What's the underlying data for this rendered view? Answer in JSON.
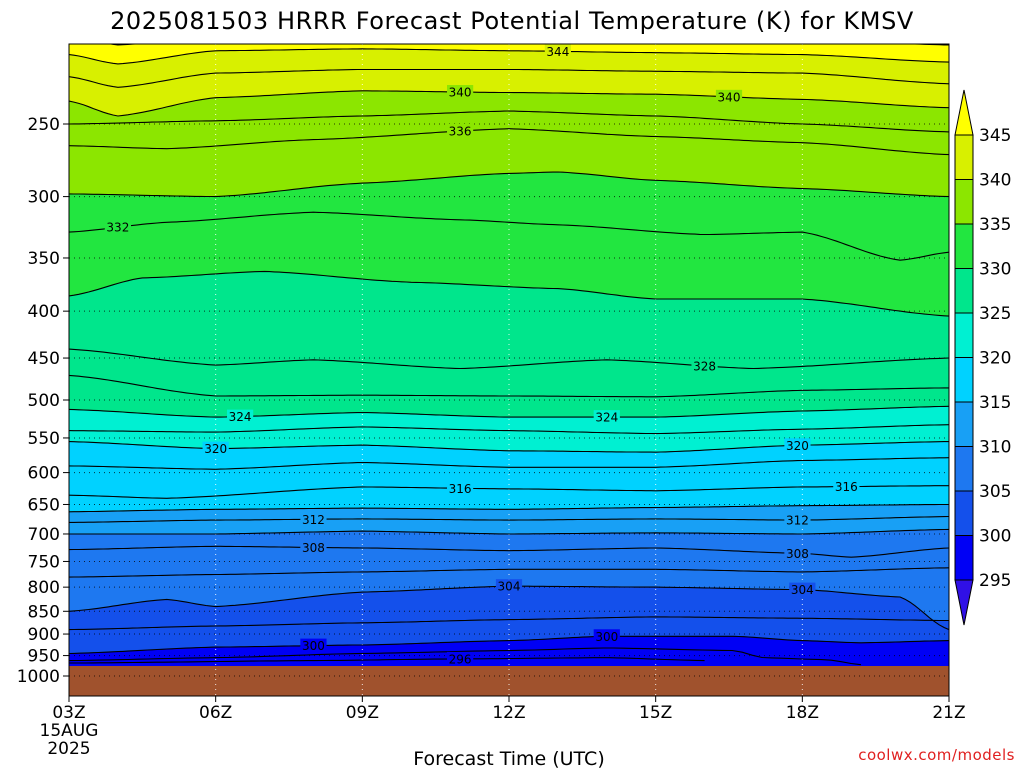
{
  "chart_data": {
    "type": "heatmap",
    "title": "2025081503 HRRR Forecast Potential Temperature (K) for KMSV",
    "xlabel": "Forecast Time (UTC)",
    "ylabel": "",
    "credit": "coolwx.com/models",
    "x_ticks": [
      "03Z",
      "06Z",
      "09Z",
      "12Z",
      "15Z",
      "18Z",
      "21Z"
    ],
    "x_start_date": [
      "15AUG",
      "2025"
    ],
    "x_range_hours": [
      3,
      21
    ],
    "y_ticks": [
      "250",
      "300",
      "350",
      "400",
      "450",
      "500",
      "550",
      "600",
      "650",
      "700",
      "750",
      "800",
      "850",
      "900",
      "950",
      "1000"
    ],
    "y_scale": "log-pressure",
    "y_range_hpa": [
      975,
      200
    ],
    "grid": "dotted",
    "ground_color": "#a0522d",
    "colorbar": {
      "levels": [
        295,
        300,
        305,
        310,
        315,
        320,
        325,
        330,
        335,
        340,
        345
      ],
      "labels": [
        "295",
        "300",
        "305",
        "310",
        "315",
        "320",
        "325",
        "330",
        "335",
        "340",
        "345"
      ],
      "colors": [
        "#3010e6",
        "#0000f5",
        "#1450eb",
        "#1e78f0",
        "#18a0f5",
        "#00d2ff",
        "#00f0d2",
        "#00e68c",
        "#22e640",
        "#8ce600",
        "#d8f000",
        "#ffff00"
      ]
    },
    "contour_interval": 2,
    "isentropes": [
      {
        "theta": 296,
        "label": "296",
        "x": [
          3,
          8,
          11,
          14,
          16
        ],
        "p": [
          968,
          962,
          958,
          955,
          962
        ]
      },
      {
        "theta": 298,
        "label": "",
        "x": [
          3,
          6,
          9,
          12,
          14,
          16.6,
          17.2,
          18.5,
          19.2
        ],
        "p": [
          962,
          955,
          945,
          938,
          932,
          938,
          955,
          960,
          972
        ]
      },
      {
        "theta": 300,
        "label": "300",
        "x": [
          3,
          6,
          9,
          12,
          14,
          16.6,
          18,
          19.2,
          21
        ],
        "p": [
          945,
          930,
          925,
          915,
          905,
          905,
          915,
          920,
          915
        ]
      },
      {
        "theta": 302,
        "label": "",
        "x": [
          3,
          6,
          9,
          12,
          15,
          18,
          21
        ],
        "p": [
          890,
          882,
          875,
          868,
          862,
          865,
          870
        ]
      },
      {
        "theta": 304,
        "label": "304",
        "x": [
          3,
          5,
          6,
          9,
          12,
          15,
          18,
          20,
          21
        ],
        "p": [
          850,
          825,
          840,
          810,
          798,
          800,
          805,
          820,
          890
        ]
      },
      {
        "theta": 306,
        "label": "",
        "x": [
          3,
          6,
          9,
          12,
          15,
          18,
          21
        ],
        "p": [
          780,
          775,
          770,
          765,
          765,
          770,
          762
        ]
      },
      {
        "theta": 308,
        "label": "308",
        "x": [
          3,
          6,
          9,
          12,
          15,
          18,
          19,
          21
        ],
        "p": [
          728,
          722,
          725,
          730,
          725,
          735,
          742,
          725
        ]
      },
      {
        "theta": 310,
        "label": "",
        "x": [
          3,
          6,
          9,
          12,
          15,
          18,
          21
        ],
        "p": [
          700,
          700,
          695,
          700,
          698,
          700,
          692
        ]
      },
      {
        "theta": 312,
        "label": "312",
        "x": [
          3,
          6,
          9,
          12,
          15,
          18,
          21
        ],
        "p": [
          680,
          676,
          674,
          676,
          674,
          676,
          670
        ]
      },
      {
        "theta": 314,
        "label": "",
        "x": [
          3,
          6,
          9,
          12,
          15,
          18,
          21
        ],
        "p": [
          662,
          658,
          656,
          658,
          655,
          652,
          650
        ]
      },
      {
        "theta": 316,
        "label": "316",
        "x": [
          3,
          5,
          9,
          12,
          15,
          18,
          21
        ],
        "p": [
          635,
          640,
          622,
          625,
          628,
          622,
          620
        ]
      },
      {
        "theta": 318,
        "label": "",
        "x": [
          3,
          6,
          9,
          12,
          15,
          18,
          21
        ],
        "p": [
          590,
          595,
          585,
          592,
          592,
          582,
          578
        ]
      },
      {
        "theta": 320,
        "label": "320",
        "x": [
          3,
          6,
          9,
          12,
          15,
          18,
          21
        ],
        "p": [
          555,
          565,
          560,
          568,
          570,
          560,
          555
        ]
      },
      {
        "theta": 322,
        "label": "",
        "x": [
          3,
          6,
          9,
          12,
          15,
          18,
          21
        ],
        "p": [
          540,
          542,
          535,
          540,
          544,
          538,
          532
        ]
      },
      {
        "theta": 324,
        "label": "324",
        "x": [
          3,
          6,
          9,
          12,
          15,
          18,
          21
        ],
        "p": [
          512,
          522,
          516,
          522,
          522,
          514,
          508
        ]
      },
      {
        "theta": 326,
        "label": "",
        "x": [
          3,
          6,
          9,
          12,
          15,
          18,
          21
        ],
        "p": [
          470,
          495,
          494,
          495,
          496,
          488,
          485
        ]
      },
      {
        "theta": 328,
        "label": "328",
        "x": [
          3,
          6,
          8,
          11,
          14,
          17,
          21
        ],
        "p": [
          440,
          458,
          452,
          462,
          452,
          462,
          450
        ]
      },
      {
        "theta": 330,
        "label": "",
        "x": [
          3,
          4.5,
          7,
          10,
          13,
          15,
          18,
          21
        ],
        "p": [
          385,
          368,
          362,
          372,
          378,
          388,
          388,
          405
        ]
      },
      {
        "theta": 332,
        "label": "332",
        "x": [
          3,
          5,
          8,
          11,
          13,
          16,
          18,
          20,
          21
        ],
        "p": [
          328,
          320,
          312,
          318,
          322,
          330,
          328,
          352,
          345
        ]
      },
      {
        "theta": 334,
        "label": "",
        "x": [
          3,
          6,
          9,
          12,
          13,
          15,
          18,
          21
        ],
        "p": [
          298,
          300,
          290,
          283,
          282,
          288,
          294,
          300
        ]
      },
      {
        "theta": 336,
        "label": "336",
        "x": [
          3,
          5,
          8,
          12,
          15,
          18,
          21
        ],
        "p": [
          264,
          266,
          260,
          253,
          258,
          262,
          270
        ]
      },
      {
        "theta": 338,
        "label": "",
        "x": [
          3,
          6,
          9,
          12,
          15,
          18,
          21
        ],
        "p": [
          250,
          248,
          245,
          242,
          245,
          250,
          255
        ]
      },
      {
        "theta": 340,
        "label": "340",
        "x": [
          3,
          4,
          6,
          9,
          12,
          15,
          18,
          21
        ],
        "p": [
          236,
          245,
          234,
          230,
          231,
          232,
          235,
          240
        ]
      },
      {
        "theta": 342,
        "label": "",
        "x": [
          3,
          4,
          6,
          9,
          12,
          15,
          18,
          21
        ],
        "p": [
          222,
          228,
          220,
          218,
          218,
          219,
          220,
          226
        ]
      },
      {
        "theta": 344,
        "label": "344",
        "x": [
          3,
          4,
          6,
          9,
          12,
          15,
          18,
          21
        ],
        "p": [
          210,
          215,
          208,
          207,
          208,
          209,
          210,
          214
        ]
      },
      {
        "theta": 346,
        "label": "",
        "x": [
          3,
          4,
          6,
          9,
          12,
          15,
          18,
          21
        ],
        "p": [
          200,
          205,
          201,
          200,
          200,
          201,
          202,
          205
        ]
      }
    ],
    "label_positions": [
      {
        "theta": 296,
        "x": 11.0
      },
      {
        "theta": 300,
        "x": 8.0
      },
      {
        "theta": 300,
        "x": 14.0
      },
      {
        "theta": 304,
        "x": 12.0
      },
      {
        "theta": 304,
        "x": 18.0
      },
      {
        "theta": 308,
        "x": 8.0
      },
      {
        "theta": 308,
        "x": 17.9
      },
      {
        "theta": 312,
        "x": 8.0
      },
      {
        "theta": 312,
        "x": 17.9
      },
      {
        "theta": 316,
        "x": 11.0
      },
      {
        "theta": 316,
        "x": 18.9
      },
      {
        "theta": 320,
        "x": 6.0
      },
      {
        "theta": 320,
        "x": 17.9
      },
      {
        "theta": 324,
        "x": 6.5
      },
      {
        "theta": 324,
        "x": 14.0
      },
      {
        "theta": 328,
        "x": 16.0
      },
      {
        "theta": 332,
        "x": 4.0
      },
      {
        "theta": 336,
        "x": 11.0
      },
      {
        "theta": 340,
        "x": 11.0
      },
      {
        "theta": 340,
        "x": 16.5
      },
      {
        "theta": 344,
        "x": 13.0
      }
    ]
  }
}
